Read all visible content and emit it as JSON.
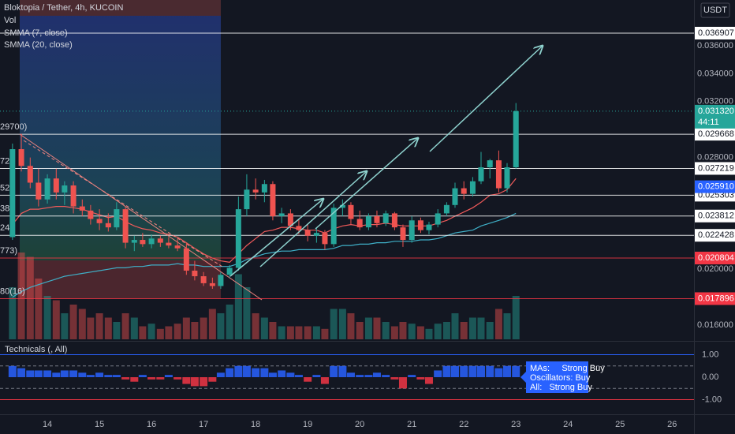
{
  "chart_data": [
    {
      "type": "candlestick",
      "title": "Bloktopia / Tether, 4h, KUCOIN",
      "unit": "USDT",
      "x": [
        13.33,
        13.5,
        13.67,
        13.83,
        14,
        14.17,
        14.33,
        14.5,
        14.67,
        14.83,
        15,
        15.17,
        15.33,
        15.5,
        15.67,
        15.83,
        16,
        16.17,
        16.33,
        16.5,
        16.67,
        16.83,
        17,
        17.17,
        17.33,
        17.5,
        17.67,
        17.83,
        18,
        18.17,
        18.33,
        18.5,
        18.67,
        18.83,
        19,
        19.17,
        19.33,
        19.5,
        19.67,
        19.83,
        20,
        20.17,
        20.33,
        20.5,
        20.67,
        20.83,
        21,
        21.17,
        21.33,
        21.5,
        21.67,
        21.83,
        22,
        22.17,
        22.33,
        22.5,
        22.67,
        22.83,
        23
      ],
      "open": [
        0.0223,
        0.0286,
        0.0274,
        0.0262,
        0.025,
        0.0265,
        0.0255,
        0.026,
        0.0245,
        0.0242,
        0.0236,
        0.0233,
        0.023,
        0.0243,
        0.0219,
        0.0221,
        0.0218,
        0.0222,
        0.0219,
        0.0217,
        0.0215,
        0.0199,
        0.0195,
        0.019,
        0.0188,
        0.0196,
        0.0201,
        0.0243,
        0.0257,
        0.0255,
        0.0261,
        0.0238,
        0.024,
        0.0231,
        0.0228,
        0.0224,
        0.0226,
        0.0218,
        0.0244,
        0.0246,
        0.0236,
        0.023,
        0.0238,
        0.0233,
        0.024,
        0.023,
        0.0221,
        0.0235,
        0.0228,
        0.0232,
        0.024,
        0.0246,
        0.0258,
        0.0254,
        0.0263,
        0.0273,
        0.0278,
        0.0258,
        0.0273
      ],
      "high": [
        0.029,
        0.0297,
        0.028,
        0.0272,
        0.0268,
        0.0272,
        0.0263,
        0.0263,
        0.025,
        0.0246,
        0.0243,
        0.024,
        0.0248,
        0.0245,
        0.0224,
        0.0226,
        0.0225,
        0.0224,
        0.0223,
        0.0222,
        0.0219,
        0.0206,
        0.0198,
        0.0194,
        0.0198,
        0.0203,
        0.0252,
        0.0268,
        0.0265,
        0.0264,
        0.0263,
        0.0244,
        0.0243,
        0.0236,
        0.0232,
        0.023,
        0.0228,
        0.0247,
        0.025,
        0.0248,
        0.0242,
        0.024,
        0.0242,
        0.0242,
        0.0241,
        0.0232,
        0.0238,
        0.0237,
        0.0234,
        0.0243,
        0.0248,
        0.0262,
        0.0263,
        0.0266,
        0.0284,
        0.0279,
        0.0285,
        0.0276,
        0.0319
      ],
      "low": [
        0.0221,
        0.027,
        0.0258,
        0.0245,
        0.0247,
        0.025,
        0.0246,
        0.024,
        0.0238,
        0.0232,
        0.0228,
        0.0227,
        0.0228,
        0.0215,
        0.0213,
        0.0216,
        0.0215,
        0.0216,
        0.0215,
        0.0213,
        0.0196,
        0.0192,
        0.0188,
        0.0186,
        0.0186,
        0.0194,
        0.0199,
        0.0238,
        0.025,
        0.0248,
        0.0235,
        0.0233,
        0.0228,
        0.0225,
        0.022,
        0.0219,
        0.0214,
        0.0216,
        0.0238,
        0.0232,
        0.0228,
        0.0228,
        0.023,
        0.0231,
        0.0228,
        0.0216,
        0.0219,
        0.0226,
        0.0225,
        0.023,
        0.0238,
        0.0244,
        0.025,
        0.0252,
        0.0261,
        0.0265,
        0.0255,
        0.0255,
        0.0272
      ],
      "close": [
        0.0286,
        0.0274,
        0.0262,
        0.025,
        0.0265,
        0.0255,
        0.026,
        0.0245,
        0.0242,
        0.0236,
        0.0233,
        0.023,
        0.0243,
        0.0219,
        0.0221,
        0.0218,
        0.0222,
        0.0219,
        0.0217,
        0.0215,
        0.0199,
        0.0195,
        0.019,
        0.0188,
        0.0196,
        0.0201,
        0.0243,
        0.0257,
        0.0255,
        0.0261,
        0.0238,
        0.024,
        0.0231,
        0.0228,
        0.0224,
        0.0226,
        0.0218,
        0.0244,
        0.0246,
        0.0236,
        0.023,
        0.0238,
        0.0233,
        0.024,
        0.023,
        0.0221,
        0.0235,
        0.0228,
        0.0232,
        0.024,
        0.0246,
        0.0258,
        0.0254,
        0.0263,
        0.0273,
        0.0278,
        0.0258,
        0.0273,
        0.03132
      ],
      "up_color": "#26a69a",
      "down_color": "#ef5350",
      "volume_label": "Vol",
      "volume": [
        60,
        100,
        95,
        70,
        50,
        45,
        30,
        40,
        35,
        25,
        30,
        25,
        20,
        30,
        25,
        15,
        18,
        12,
        15,
        18,
        25,
        20,
        25,
        35,
        30,
        40,
        75,
        60,
        30,
        25,
        20,
        15,
        15,
        15,
        15,
        15,
        12,
        35,
        35,
        30,
        20,
        25,
        25,
        20,
        15,
        20,
        18,
        15,
        12,
        18,
        20,
        30,
        20,
        25,
        25,
        20,
        35,
        30,
        50
      ],
      "overlays": [
        {
          "name": "SMMA (7, close)",
          "color": "#f05a5a",
          "values": [
            0.0232,
            0.024,
            0.0243,
            0.0243,
            0.0244,
            0.0245,
            0.0245,
            0.0244,
            0.0243,
            0.0241,
            0.0239,
            0.0237,
            0.0238,
            0.0234,
            0.0231,
            0.0229,
            0.0228,
            0.0226,
            0.0225,
            0.0223,
            0.0219,
            0.0215,
            0.0211,
            0.0208,
            0.0206,
            0.0205,
            0.0211,
            0.0217,
            0.0222,
            0.0227,
            0.0228,
            0.023,
            0.023,
            0.0229,
            0.0228,
            0.0228,
            0.0226,
            0.0229,
            0.0231,
            0.0232,
            0.0231,
            0.0232,
            0.0232,
            0.0233,
            0.0232,
            0.0231,
            0.0231,
            0.0231,
            0.0231,
            0.0233,
            0.0235,
            0.0238,
            0.0241,
            0.0244,
            0.0248,
            0.0253,
            0.0254,
            0.0257,
            0.0265
          ]
        },
        {
          "name": "SMMA (20, close)",
          "color": "#3fb0c8",
          "values": [
            0.018,
            0.0184,
            0.0187,
            0.0189,
            0.0191,
            0.0193,
            0.0195,
            0.0196,
            0.0197,
            0.0198,
            0.0199,
            0.02,
            0.0201,
            0.0201,
            0.0202,
            0.0202,
            0.0203,
            0.0203,
            0.0203,
            0.0204,
            0.0203,
            0.0203,
            0.0202,
            0.0202,
            0.0202,
            0.0202,
            0.0204,
            0.0207,
            0.0209,
            0.0211,
            0.0212,
            0.0213,
            0.0213,
            0.0214,
            0.0214,
            0.0214,
            0.0214,
            0.0215,
            0.0217,
            0.0217,
            0.0218,
            0.0218,
            0.0219,
            0.0219,
            0.022,
            0.022,
            0.022,
            0.0221,
            0.0221,
            0.0222,
            0.0224,
            0.0226,
            0.0227,
            0.0228,
            0.0231,
            0.0233,
            0.0235,
            0.0237,
            0.024
          ]
        }
      ],
      "levels": [
        {
          "value": 0.036907,
          "label": "0.036907",
          "color": "#ffffff"
        },
        {
          "value": 0.029668,
          "label": "0.029668",
          "color": "#ffffff",
          "left_label": "29700)"
        },
        {
          "value": 0.027219,
          "label": "0.027219",
          "color": "#ffffff",
          "left_label": "72"
        },
        {
          "value": 0.025303,
          "label": "0.025303",
          "color": "#ffffff",
          "left_label": "52"
        },
        {
          "value": 0.023812,
          "label": "0.023812",
          "color": "#ffffff",
          "left_label": "38"
        },
        {
          "value": 0.022428,
          "label": "0.022428",
          "color": "#ffffff",
          "left_label": "24"
        },
        {
          "value": 0.020804,
          "label": "0.020804",
          "color": "#f23645",
          "left_label": "773)"
        },
        {
          "value": 0.017896,
          "label": "0.017896",
          "color": "#f23645",
          "left_label": "80(16)"
        }
      ],
      "price_tags": [
        {
          "value": 0.03132,
          "label": "0.031320",
          "countdown": "44:11",
          "color": "#26a69a"
        },
        {
          "value": 0.02591,
          "label": "0.025910",
          "color": "#2962ff"
        }
      ],
      "xlim": [
        13.09,
        26.42
      ],
      "xticks": [
        14,
        15,
        16,
        17,
        18,
        19,
        20,
        21,
        22,
        23,
        24,
        25,
        26
      ],
      "ylim": [
        0.01487,
        0.03928
      ],
      "yticks": [
        {
          "value": 0.016,
          "label": "0.016000"
        },
        {
          "value": 0.02,
          "label": "0.020000"
        },
        {
          "value": 0.028,
          "label": "0.028000"
        },
        {
          "value": 0.032,
          "label": "0.032000"
        },
        {
          "value": 0.034,
          "label": "0.034000"
        },
        {
          "value": 0.036,
          "label": "0.036000"
        }
      ],
      "grid": true
    },
    {
      "type": "bar",
      "title": "Technicals (, All)",
      "x": [
        13.33,
        13.5,
        13.67,
        13.83,
        14,
        14.17,
        14.33,
        14.5,
        14.67,
        14.83,
        15,
        15.17,
        15.33,
        15.5,
        15.67,
        15.83,
        16,
        16.17,
        16.33,
        16.5,
        16.67,
        16.83,
        17,
        17.17,
        17.33,
        17.5,
        17.67,
        17.83,
        18,
        18.17,
        18.33,
        18.5,
        18.67,
        18.83,
        19,
        19.17,
        19.33,
        19.5,
        19.67,
        19.83,
        20,
        20.17,
        20.33,
        20.5,
        20.67,
        20.83,
        21,
        21.17,
        21.33,
        21.5,
        21.67,
        21.83,
        22,
        22.17,
        22.33,
        22.5,
        22.67,
        22.83,
        23
      ],
      "values": [
        0.5,
        0.4,
        0.3,
        0.3,
        0.3,
        0.2,
        0.3,
        0.3,
        0.2,
        0.1,
        0.2,
        0.1,
        0.1,
        -0.1,
        -0.2,
        0.1,
        -0.1,
        -0.1,
        0.1,
        -0.1,
        -0.3,
        -0.4,
        -0.4,
        -0.2,
        0.2,
        0.4,
        0.5,
        0.5,
        0.4,
        0.4,
        0.2,
        0.3,
        0.2,
        0.1,
        -0.2,
        0.1,
        -0.3,
        0.5,
        0.5,
        0.2,
        0.1,
        0.1,
        0.2,
        0.1,
        -0.1,
        -0.5,
        0.1,
        -0.1,
        -0.3,
        0.3,
        0.5,
        0.5,
        0.5,
        0.5,
        0.5,
        0.5,
        0.4,
        0.5,
        0.5
      ],
      "positive_color": "#2962ff",
      "negative_color": "#f23645",
      "ylim": [
        -1.65,
        1.58
      ],
      "yticks": [
        {
          "value": 1,
          "label": "1.00"
        },
        {
          "value": 0,
          "label": "0.00"
        },
        {
          "value": -1,
          "label": "-1.00"
        }
      ],
      "levels": [
        {
          "value": 1,
          "color": "#2962ff",
          "dashed": false
        },
        {
          "value": 0.5,
          "color": "#787b86",
          "dashed": true
        },
        {
          "value": -0.5,
          "color": "#787b86",
          "dashed": true
        },
        {
          "value": -1,
          "color": "#f23645",
          "dashed": false
        }
      ],
      "tooltip": [
        "MAs:     Strong Buy",
        "Oscillators: Buy",
        "All:   Strong Buy"
      ]
    }
  ]
}
